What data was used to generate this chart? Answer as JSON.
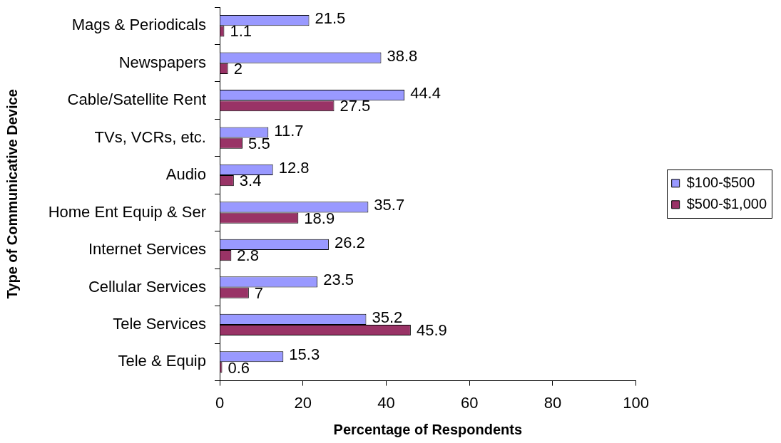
{
  "chart_data": {
    "type": "bar",
    "orientation": "horizontal",
    "xlabel": "Percentage of Respondents",
    "ylabel": "Type of Communicative Device",
    "categories": [
      "Mags & Periodicals",
      "Newspapers",
      "Cable/Satellite Rent",
      "TVs, VCRs, etc.",
      "Audio",
      "Home Ent Equip & Ser",
      "Internet Services",
      "Cellular Services",
      "Tele Services",
      "Tele & Equip"
    ],
    "series": [
      {
        "name": "$100-$500",
        "color": "#9999ff",
        "values": [
          21.5,
          38.8,
          44.4,
          11.7,
          12.8,
          35.7,
          26.2,
          23.5,
          35.2,
          15.3
        ]
      },
      {
        "name": "$500-$1,000",
        "color": "#993366",
        "values": [
          1.1,
          2,
          27.5,
          5.5,
          3.4,
          18.9,
          2.8,
          7,
          45.9,
          0.6
        ]
      }
    ],
    "xlim": [
      0,
      100
    ],
    "xticks": [
      0,
      20,
      40,
      60,
      80,
      100
    ],
    "data_labels": true,
    "legend": "right"
  }
}
